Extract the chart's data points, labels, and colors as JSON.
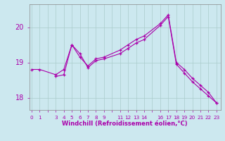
{
  "xlabel": "Windchill (Refroidissement éolien,°C)",
  "background_color": "#cce8ef",
  "line_color": "#aa00aa",
  "grid_color": "#aacccc",
  "line1_x": [
    0,
    1,
    3,
    4,
    5,
    6,
    7,
    8,
    9,
    11,
    12,
    13,
    14,
    16,
    17,
    18,
    19,
    20,
    21,
    22,
    23
  ],
  "line1_y": [
    18.8,
    18.8,
    18.65,
    18.8,
    19.5,
    19.15,
    18.9,
    19.1,
    19.15,
    19.35,
    19.5,
    19.65,
    19.75,
    20.1,
    20.35,
    19.0,
    18.8,
    18.55,
    18.35,
    18.15,
    17.85
  ],
  "line2_x": [
    3,
    4,
    5,
    6,
    7,
    8,
    9,
    11,
    12,
    13,
    14,
    16,
    17,
    18,
    19,
    20,
    21,
    22,
    23
  ],
  "line2_y": [
    18.6,
    18.65,
    19.5,
    19.25,
    18.85,
    19.05,
    19.1,
    19.25,
    19.4,
    19.55,
    19.65,
    20.05,
    20.3,
    18.95,
    18.7,
    18.45,
    18.25,
    18.05,
    17.85
  ],
  "ylim": [
    17.65,
    20.65
  ],
  "yticks": [
    18,
    19,
    20
  ],
  "xtick_labels": [
    "0",
    "1",
    "",
    "3",
    "4",
    "5",
    "6",
    "7",
    "8",
    "9",
    "",
    "11",
    "12",
    "13",
    "14",
    "",
    "16",
    "17",
    "18",
    "19",
    "20",
    "21",
    "22",
    "23"
  ],
  "xtick_positions": [
    0,
    1,
    2,
    3,
    4,
    5,
    6,
    7,
    8,
    9,
    10,
    11,
    12,
    13,
    14,
    15,
    16,
    17,
    18,
    19,
    20,
    21,
    22,
    23
  ],
  "xlim": [
    -0.3,
    23.5
  ]
}
